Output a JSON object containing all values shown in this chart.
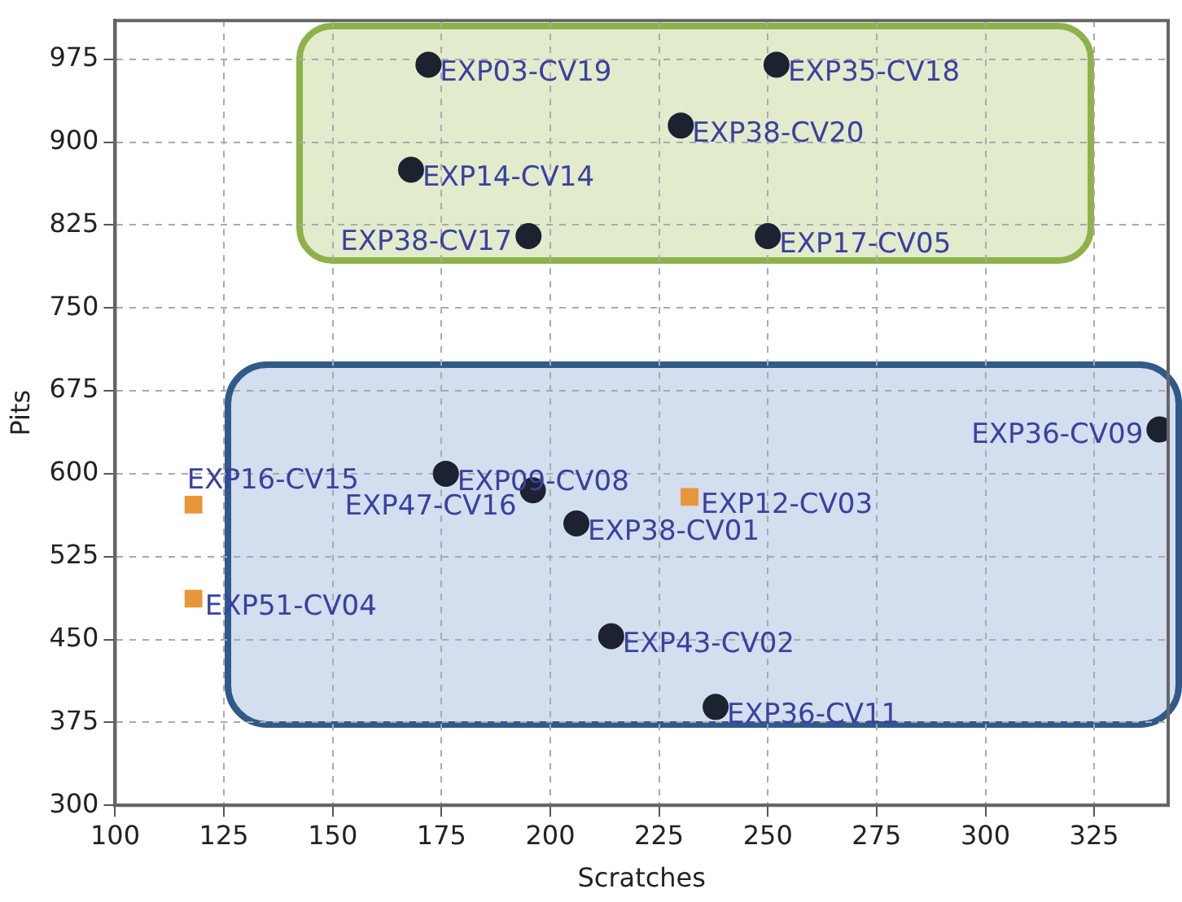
{
  "chart_data": {
    "type": "scatter",
    "xlabel": "Scratches",
    "ylabel": "Pits",
    "xlim": [
      100,
      342
    ],
    "xticks": [
      100,
      125,
      150,
      175,
      200,
      225,
      250,
      275,
      300,
      325
    ],
    "ylim": [
      300,
      1010
    ],
    "yticks": [
      300,
      375,
      450,
      525,
      600,
      675,
      750,
      825,
      900,
      975
    ],
    "grid": true,
    "legend": false,
    "series": [
      {
        "color": "#1c2230",
        "marker": "circle",
        "x": [
          172,
          252,
          230,
          168,
          195,
          250,
          340,
          176,
          196,
          206,
          214,
          238
        ],
        "values": [
          970,
          970,
          915,
          875,
          815,
          815,
          640,
          600,
          585,
          555,
          453,
          389
        ]
      },
      {
        "color": "#e8963a",
        "marker": "square",
        "x": [
          118,
          232,
          118
        ],
        "values": [
          572,
          579,
          487
        ]
      }
    ],
    "annotations": [
      {
        "text": "EXP03-CV19",
        "x": 172,
        "y": 970
      },
      {
        "text": "EXP35-CV18",
        "x": 252,
        "y": 970
      },
      {
        "text": "EXP38-CV20",
        "x": 230,
        "y": 915
      },
      {
        "text": "EXP14-CV14",
        "x": 168,
        "y": 875
      },
      {
        "text": "EXP38-CV17",
        "x": 195,
        "y": 815
      },
      {
        "text": "EXP17-CV05",
        "x": 250,
        "y": 815
      },
      {
        "text": "EXP36-CV09",
        "x": 340,
        "y": 640
      },
      {
        "text": "EXP16-CV15",
        "x": 118,
        "y": 572
      },
      {
        "text": "EXP09-CV08",
        "x": 176,
        "y": 600
      },
      {
        "text": "EXP47-CV16",
        "x": 196,
        "y": 585
      },
      {
        "text": "EXP38-CV01",
        "x": 206,
        "y": 555
      },
      {
        "text": "EXP12-CV03",
        "x": 232,
        "y": 579
      },
      {
        "text": "EXP51-CV04",
        "x": 118,
        "y": 487
      },
      {
        "text": "EXP43-CV02",
        "x": 214,
        "y": 453
      },
      {
        "text": "EXP36-CV11",
        "x": 238,
        "y": 389
      }
    ]
  }
}
